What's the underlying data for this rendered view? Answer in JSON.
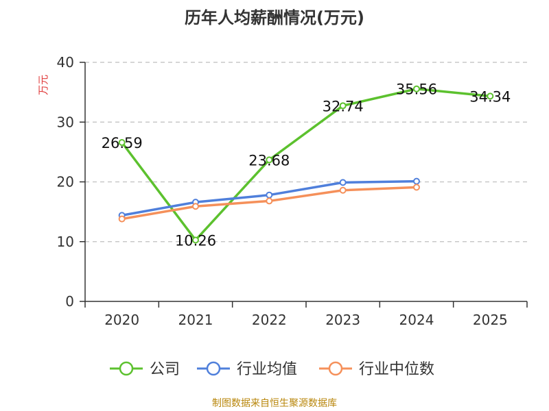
{
  "chart_data": {
    "type": "line",
    "title": "历年人均薪酬情况(万元)",
    "ylabel": "万元",
    "xlabel": "",
    "ylim": [
      0,
      40
    ],
    "yticks": [
      0,
      10,
      20,
      30,
      40
    ],
    "grid": true,
    "legend_position": "bottom",
    "categories": [
      "2020",
      "2021",
      "2022",
      "2023",
      "2024",
      "2025"
    ],
    "series": [
      {
        "name": "公司",
        "color": "#5cc12e",
        "show_labels": true,
        "values": [
          26.59,
          10.26,
          23.68,
          32.74,
          35.56,
          34.34
        ]
      },
      {
        "name": "行业均值",
        "color": "#4f7fdb",
        "show_labels": false,
        "values": [
          14.4,
          16.6,
          17.8,
          19.9,
          20.1,
          null
        ]
      },
      {
        "name": "行业中位数",
        "color": "#f5905a",
        "show_labels": false,
        "values": [
          13.8,
          15.9,
          16.8,
          18.6,
          19.1,
          null
        ]
      }
    ],
    "source": "制图数据来自恒生聚源数据库"
  }
}
